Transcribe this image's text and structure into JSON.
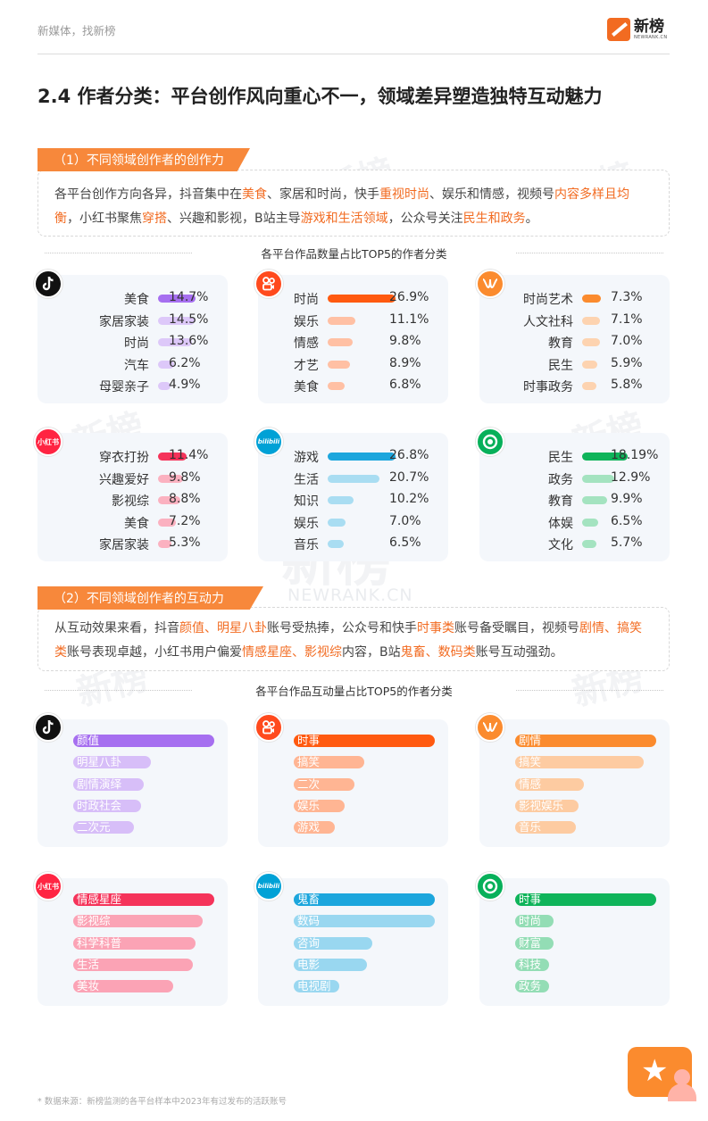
{
  "header": {
    "slogan": "新媒体，找新榜",
    "logo_cn": "新榜",
    "logo_en": "NEWRANK.CN"
  },
  "title": "2.4 作者分类：平台创作风向重心不一，领域差异塑造独特互动魅力",
  "section1": {
    "tab": "（1）不同领域创作者的创作力",
    "text_parts": [
      {
        "t": "各平台创作方向各异，抖音集中在",
        "h": false
      },
      {
        "t": "美食",
        "h": true
      },
      {
        "t": "、家居和时尚，快手",
        "h": false
      },
      {
        "t": "重视时尚",
        "h": true
      },
      {
        "t": "、娱乐和情感，视频号",
        "h": false
      },
      {
        "t": "内容多样且均衡",
        "h": true
      },
      {
        "t": "，小红书聚焦",
        "h": false
      },
      {
        "t": "穿搭",
        "h": true
      },
      {
        "t": "、兴趣和影视，B站主导",
        "h": false
      },
      {
        "t": "游戏和生活领域",
        "h": true
      },
      {
        "t": "，公众号关注",
        "h": false
      },
      {
        "t": "民生和政务",
        "h": true
      },
      {
        "t": "。",
        "h": false
      }
    ],
    "caption": "各平台作品数量占比TOP5的作者分类"
  },
  "section2": {
    "tab": "（2）不同领域创作者的互动力",
    "text_parts": [
      {
        "t": "从互动效果来看，抖音",
        "h": false
      },
      {
        "t": "颜值、明星八卦",
        "h": true
      },
      {
        "t": "账号受热捧，公众号和快手",
        "h": false
      },
      {
        "t": "时事类",
        "h": true
      },
      {
        "t": "账号备受瞩目，视频号",
        "h": false
      },
      {
        "t": "剧情、搞笑类",
        "h": true
      },
      {
        "t": "账号表现卓越，小红书用户偏爱",
        "h": false
      },
      {
        "t": "情感星座、影视综",
        "h": true
      },
      {
        "t": "内容，B站",
        "h": false
      },
      {
        "t": "鬼畜、数码类",
        "h": true
      },
      {
        "t": "账号互动强劲。",
        "h": false
      }
    ],
    "caption": "各平台作品互动量占比TOP5的作者分类"
  },
  "platform_icons": {
    "douyin": "douyin-icon",
    "kuaishou": "kuaishou-icon",
    "wechat_channels": "wechat-channels-icon",
    "xiaohongshu": "xiaohongshu-icon",
    "bilibili": "bilibili-icon",
    "gongzhonghao": "wechat-official-account-icon",
    "xhs_text": "小红书",
    "bili_text": "bilibili"
  },
  "chart_data": [
    {
      "type": "bar",
      "platform": "douyin",
      "color": "#a66ff0",
      "categories": [
        "美食",
        "家居家装",
        "时尚",
        "汽车",
        "母婴亲子"
      ],
      "values": [
        14.7,
        14.5,
        13.6,
        6.2,
        4.9
      ],
      "labels": [
        "14.7%",
        "14.5%",
        "13.6%",
        "6.2%",
        "4.9%"
      ]
    },
    {
      "type": "bar",
      "platform": "kuaishou",
      "color": "#ff5a10",
      "categories": [
        "时尚",
        "娱乐",
        "情感",
        "才艺",
        "美食"
      ],
      "values": [
        26.9,
        11.1,
        9.8,
        8.9,
        6.8
      ],
      "labels": [
        "26.9%",
        "11.1%",
        "9.8%",
        "8.9%",
        "6.8%"
      ]
    },
    {
      "type": "bar",
      "platform": "wechat_channels",
      "color": "#fb8b2e",
      "categories": [
        "时尚艺术",
        "人文社科",
        "教育",
        "民生",
        "时事政务"
      ],
      "values": [
        7.3,
        7.1,
        7.0,
        5.9,
        5.8
      ],
      "labels": [
        "7.3%",
        "7.1%",
        "7.0%",
        "5.9%",
        "5.8%"
      ]
    },
    {
      "type": "bar",
      "platform": "xiaohongshu",
      "color": "#f5335a",
      "categories": [
        "穿衣打扮",
        "兴趣爱好",
        "影视综",
        "美食",
        "家居家装"
      ],
      "values": [
        11.4,
        9.8,
        8.8,
        7.2,
        5.3
      ],
      "labels": [
        "11.4%",
        "9.8%",
        "8.8%",
        "7.2%",
        "5.3%"
      ]
    },
    {
      "type": "bar",
      "platform": "bilibili",
      "color": "#1ca6dd",
      "categories": [
        "游戏",
        "生活",
        "知识",
        "娱乐",
        "音乐"
      ],
      "values": [
        26.8,
        20.7,
        10.2,
        7.0,
        6.5
      ],
      "labels": [
        "26.8%",
        "20.7%",
        "10.2%",
        "7.0%",
        "6.5%"
      ]
    },
    {
      "type": "bar",
      "platform": "gongzhonghao",
      "color": "#0fb45a",
      "categories": [
        "民生",
        "政务",
        "教育",
        "体娱",
        "文化"
      ],
      "values": [
        18.19,
        12.9,
        9.9,
        6.5,
        5.7
      ],
      "labels": [
        "18.19%",
        "12.9%",
        "9.9%",
        "6.5%",
        "5.7%"
      ]
    }
  ],
  "interaction": [
    {
      "platform": "douyin",
      "color": "#a66ff0",
      "categories": [
        "颜值",
        "明星八卦",
        "剧情演绎",
        "时政社会",
        "二次元"
      ],
      "values": [
        1.0,
        0.55,
        0.5,
        0.48,
        0.43
      ]
    },
    {
      "platform": "kuaishou",
      "color": "#ff5a10",
      "categories": [
        "时事",
        "搞笑",
        "二次",
        "娱乐",
        "游戏"
      ],
      "values": [
        1.0,
        0.5,
        0.43,
        0.36,
        0.29
      ]
    },
    {
      "platform": "wechat_channels",
      "color": "#fb8b2e",
      "categories": [
        "剧情",
        "搞笑",
        "情感",
        "影视娱乐",
        "音乐"
      ],
      "values": [
        1.0,
        0.91,
        0.49,
        0.45,
        0.43
      ]
    },
    {
      "platform": "xiaohongshu",
      "color": "#f5335a",
      "categories": [
        "情感星座",
        "影视综",
        "科学科普",
        "生活",
        "美妆"
      ],
      "values": [
        1.0,
        0.92,
        0.87,
        0.85,
        0.71
      ]
    },
    {
      "platform": "bilibili",
      "color": "#1ca6dd",
      "categories": [
        "鬼畜",
        "数码",
        "咨询",
        "电影",
        "电视剧"
      ],
      "values": [
        1.0,
        1.0,
        0.56,
        0.52,
        0.32
      ]
    },
    {
      "platform": "gongzhonghao",
      "color": "#0fb45a",
      "categories": [
        "时事",
        "时尚",
        "财富",
        "科技",
        "政务"
      ],
      "values": [
        1.0,
        0.27,
        0.27,
        0.24,
        0.24
      ]
    }
  ],
  "watermark": {
    "cn": "新榜",
    "en": "NEWRANK.CN"
  },
  "footnote": "* 数据来源：新榜监测的各平台样本中2023年有过发布的活跃账号",
  "favorite_icon": "star-icon"
}
